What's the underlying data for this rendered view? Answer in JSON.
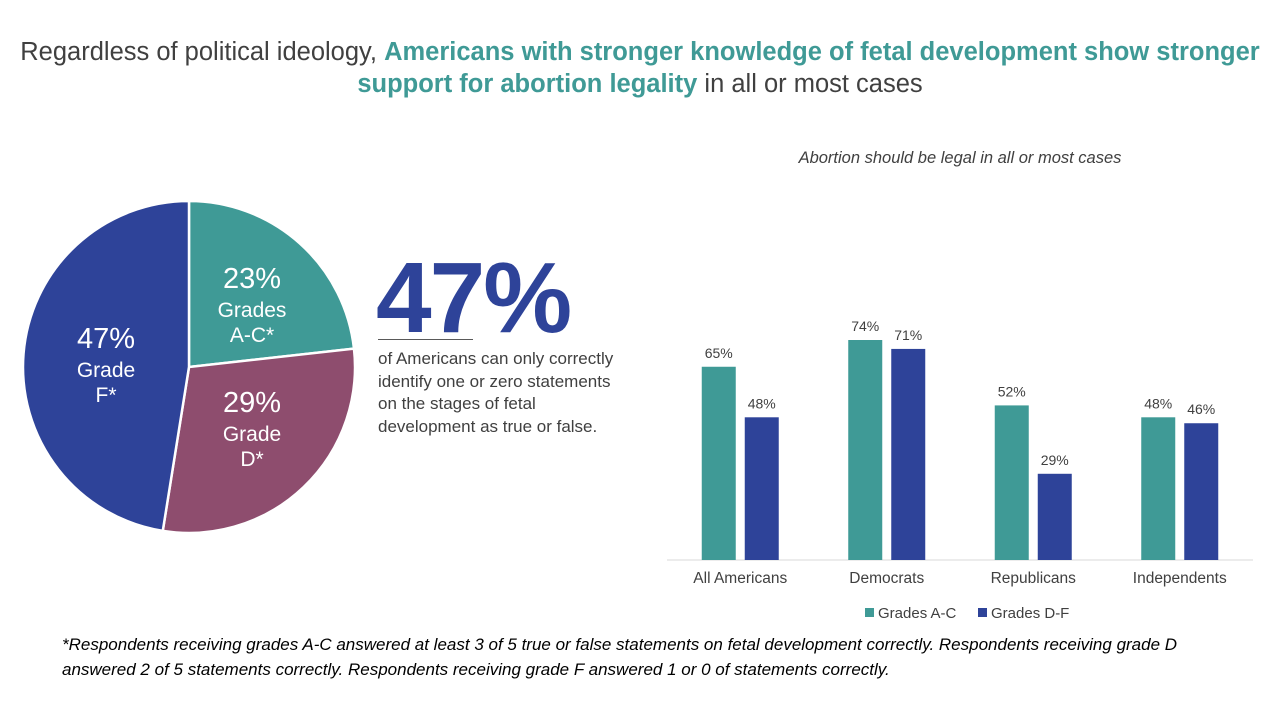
{
  "title": {
    "part1": "Regardless of political ideology, ",
    "highlight": "Americans with stronger knowledge of fetal development show stronger support for abortion legality",
    "part2": " in all or most cases"
  },
  "stat": {
    "value": "47%",
    "description": "of Americans can only correctly identify one or zero statements on the stages of fetal development as true or false."
  },
  "footnote": "*Respondents receiving grades A-C answered at least 3 of 5 true or false statements on fetal development correctly. Respondents receiving grade D answered 2 of 5 statements correctly. Respondents receiving grade F answered 1 or 0 of statements correctly.",
  "colors": {
    "teal": "#3f9a96",
    "navy": "#2e4399",
    "mauve": "#8e4d6e"
  },
  "chart_data": [
    {
      "type": "pie",
      "title": "",
      "slices": [
        {
          "label_pct": "23%",
          "label_line1": "Grades",
          "label_line2": "A-C*",
          "value": 23,
          "color": "#3f9a96"
        },
        {
          "label_pct": "29%",
          "label_line1": "Grade",
          "label_line2": "D*",
          "value": 29,
          "color": "#8e4d6e"
        },
        {
          "label_pct": "47%",
          "label_line1": "Grade",
          "label_line2": "F*",
          "value": 47,
          "color": "#2e4399"
        }
      ]
    },
    {
      "type": "bar",
      "title": "Abortion should be legal in all or most cases",
      "categories": [
        "All Americans",
        "Democrats",
        "Republicans",
        "Independents"
      ],
      "series": [
        {
          "name": "Grades A-C",
          "values": [
            65,
            74,
            52,
            48
          ],
          "labels": [
            "65%",
            "74%",
            "52%",
            "48%"
          ],
          "color": "#3f9a96"
        },
        {
          "name": "Grades D-F",
          "values": [
            48,
            71,
            29,
            46
          ],
          "labels": [
            "48%",
            "71%",
            "29%",
            "46%"
          ],
          "color": "#2e4399"
        }
      ],
      "xlabel": "",
      "ylabel": "",
      "ylim": [
        0,
        100
      ],
      "grid": false,
      "legend": "bottom"
    }
  ]
}
